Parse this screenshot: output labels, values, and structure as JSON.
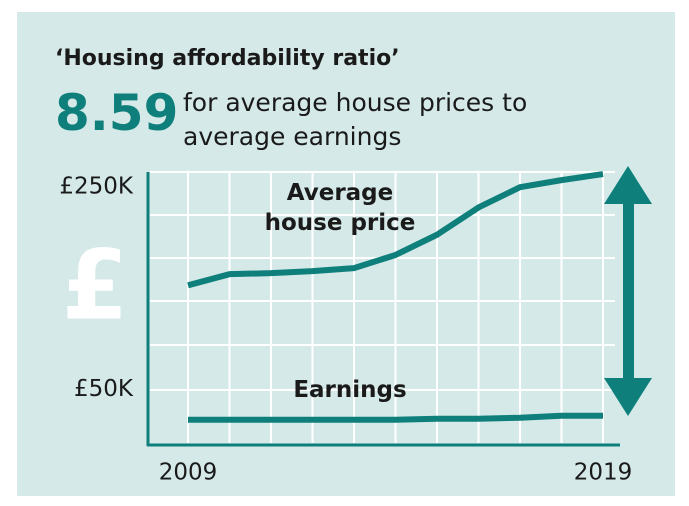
{
  "header": {
    "title": "‘Housing affordability ratio’",
    "ratio": 8.59,
    "subtitle": "for average house prices to average earnings"
  },
  "chart_data": {
    "type": "line",
    "categories": [
      "2009",
      null,
      null,
      null,
      null,
      null,
      null,
      null,
      null,
      null,
      "2019"
    ],
    "series": [
      {
        "name": "Average house price",
        "color": "#0e7f7b",
        "values": [
          153,
          164,
          165,
          167,
          170,
          183,
          203,
          230,
          250,
          257,
          263
        ]
      },
      {
        "name": "Earnings",
        "color": "#0e7f7b",
        "values": [
          20,
          20,
          20,
          20,
          20,
          20,
          21,
          21,
          22,
          24,
          24
        ]
      }
    ],
    "ylim": [
      0,
      270
    ],
    "yticks": [
      {
        "value": 250,
        "label": "£250K"
      },
      {
        "value": 50,
        "label": "£50K"
      }
    ],
    "grid": true
  }
}
